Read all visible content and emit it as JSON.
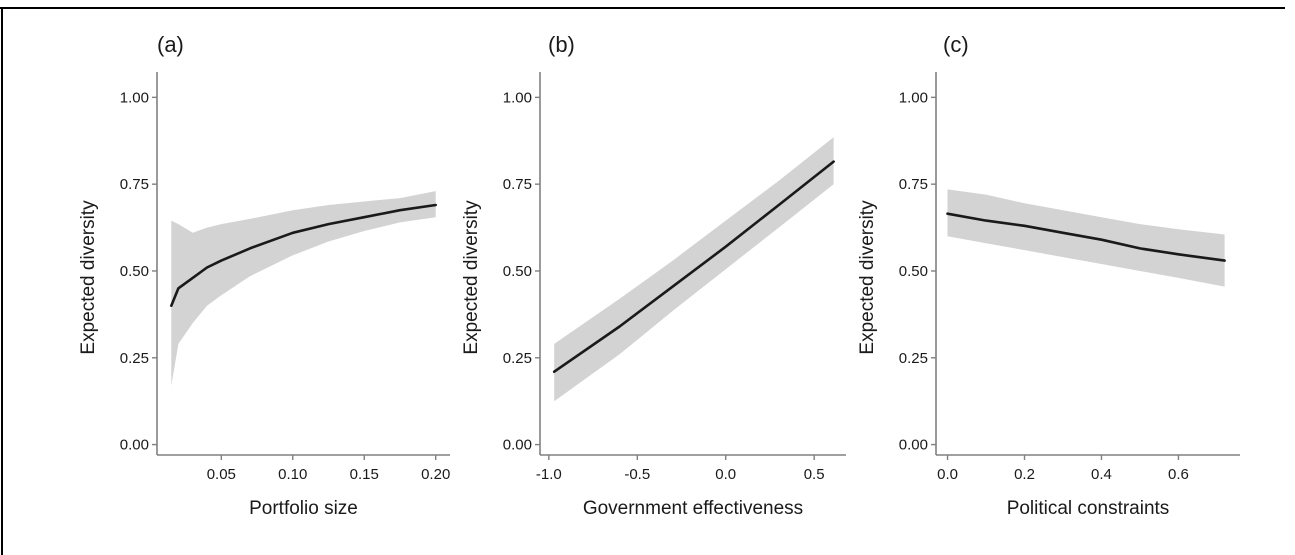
{
  "figure": {
    "colors": {
      "ribbon": "#d3d3d3",
      "line": "#1a1a1a",
      "axis": "#808080"
    }
  },
  "chart_data": [
    {
      "type": "line",
      "panel_label": "(a)",
      "xlabel": "Portfolio size",
      "ylabel": "Expected diversity",
      "xlim": [
        0.005,
        0.21
      ],
      "ylim": [
        -0.03,
        1.05
      ],
      "xticks": [
        0.05,
        0.1,
        0.15,
        0.2
      ],
      "xtick_labels": [
        "0.05",
        "0.10",
        "0.15",
        "0.20"
      ],
      "yticks": [
        0,
        0.25,
        0.5,
        0.75,
        1.0
      ],
      "ytick_labels": [
        "0.00",
        "0.25",
        "0.50",
        "0.75",
        "1.00"
      ],
      "series": [
        {
          "x": [
            0.015,
            0.02,
            0.03,
            0.04,
            0.05,
            0.07,
            0.1,
            0.125,
            0.15,
            0.175,
            0.2
          ],
          "y": [
            0.4,
            0.45,
            0.48,
            0.51,
            0.53,
            0.565,
            0.61,
            0.635,
            0.655,
            0.675,
            0.69
          ],
          "lower": [
            0.17,
            0.29,
            0.35,
            0.4,
            0.43,
            0.485,
            0.545,
            0.585,
            0.615,
            0.64,
            0.655
          ],
          "upper": [
            0.645,
            0.635,
            0.61,
            0.625,
            0.635,
            0.65,
            0.675,
            0.69,
            0.7,
            0.71,
            0.73
          ]
        }
      ],
      "grid": false
    },
    {
      "type": "line",
      "panel_label": "(b)",
      "xlabel": "Government effectiveness",
      "ylabel": "Expected diversity",
      "xlim": [
        -1.05,
        0.68
      ],
      "ylim": [
        -0.03,
        1.05
      ],
      "xticks": [
        -1.0,
        -0.5,
        0.0,
        0.5
      ],
      "xtick_labels": [
        "-1.0",
        "-0.5",
        "0.0",
        "0.5"
      ],
      "yticks": [
        0,
        0.25,
        0.5,
        0.75,
        1.0
      ],
      "ytick_labels": [
        "0.00",
        "0.25",
        "0.50",
        "0.75",
        "1.00"
      ],
      "series": [
        {
          "x": [
            -0.97,
            -0.6,
            -0.3,
            0.0,
            0.3,
            0.61
          ],
          "y": [
            0.21,
            0.34,
            0.455,
            0.57,
            0.69,
            0.815
          ],
          "lower": [
            0.125,
            0.26,
            0.385,
            0.505,
            0.625,
            0.75
          ],
          "upper": [
            0.29,
            0.42,
            0.53,
            0.645,
            0.76,
            0.885
          ]
        }
      ],
      "grid": false
    },
    {
      "type": "line",
      "panel_label": "(c)",
      "xlabel": "Political constraints",
      "ylabel": "Expected diversity",
      "xlim": [
        -0.03,
        0.76
      ],
      "ylim": [
        -0.03,
        1.05
      ],
      "xticks": [
        0.0,
        0.2,
        0.4,
        0.6
      ],
      "xtick_labels": [
        "0.0",
        "0.2",
        "0.4",
        "0.6"
      ],
      "yticks": [
        0,
        0.25,
        0.5,
        0.75,
        1.0
      ],
      "ytick_labels": [
        "0.00",
        "0.25",
        "0.50",
        "0.75",
        "1.00"
      ],
      "series": [
        {
          "x": [
            0.0,
            0.1,
            0.2,
            0.3,
            0.4,
            0.5,
            0.6,
            0.72
          ],
          "y": [
            0.665,
            0.645,
            0.63,
            0.61,
            0.59,
            0.565,
            0.548,
            0.53
          ],
          "lower": [
            0.6,
            0.58,
            0.56,
            0.54,
            0.52,
            0.5,
            0.48,
            0.455
          ],
          "upper": [
            0.735,
            0.72,
            0.695,
            0.675,
            0.655,
            0.635,
            0.62,
            0.605
          ]
        }
      ],
      "grid": false
    }
  ]
}
